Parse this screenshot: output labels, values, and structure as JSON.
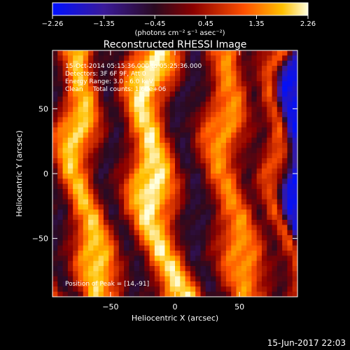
{
  "chart_data": {
    "type": "heatmap",
    "title": "Reconstructed RHESSI Image",
    "xlabel": "Heliocentric X (arcsec)",
    "ylabel": "Heliocentric Y (arcsec)",
    "xlim": [
      -95,
      95
    ],
    "ylim": [
      -95,
      95
    ],
    "x_ticks": [
      -50,
      0,
      50
    ],
    "x_tick_labels": [
      "−50",
      "0",
      "50"
    ],
    "y_ticks": [
      50,
      0,
      -50
    ],
    "y_tick_labels": [
      "50",
      "0",
      "−50"
    ],
    "colorbar": {
      "range": [
        -2.26,
        2.26
      ],
      "ticks": [
        -2.26,
        -1.35,
        -0.45,
        0.45,
        1.35,
        2.26
      ],
      "tick_labels": [
        "−2.26",
        "−1.35",
        "−0.45",
        "0.45",
        "1.35",
        "2.26"
      ],
      "label": "(photons cm⁻² s⁻¹ asec⁻²)"
    },
    "annotations": [
      "15-Oct-2014 05:15:36.000 to 05:25:36.000",
      "Detectors: 3F 6F 9F, Att 0",
      "Energy Range: 3.0 - 6.0 keV",
      "Clean     Total counts: 1.60e+06",
      "Position of Peak = [14,-91]"
    ],
    "peak": [
      14,
      -91
    ],
    "grid": 48,
    "bands": [
      {
        "x_center": -75,
        "value": 1.9
      },
      {
        "x_center": -50,
        "value": -0.5
      },
      {
        "x_center": -20,
        "value": 2.15
      },
      {
        "x_center": 10,
        "value": -0.6
      },
      {
        "x_center": 40,
        "value": 1.5
      },
      {
        "x_center": 62,
        "value": -0.2
      },
      {
        "x_center": 78,
        "value": 1.0
      },
      {
        "x_center": 92,
        "value": -2.0
      }
    ]
  },
  "footer": {
    "timestamp": "15-Jun-2017 22:03"
  }
}
